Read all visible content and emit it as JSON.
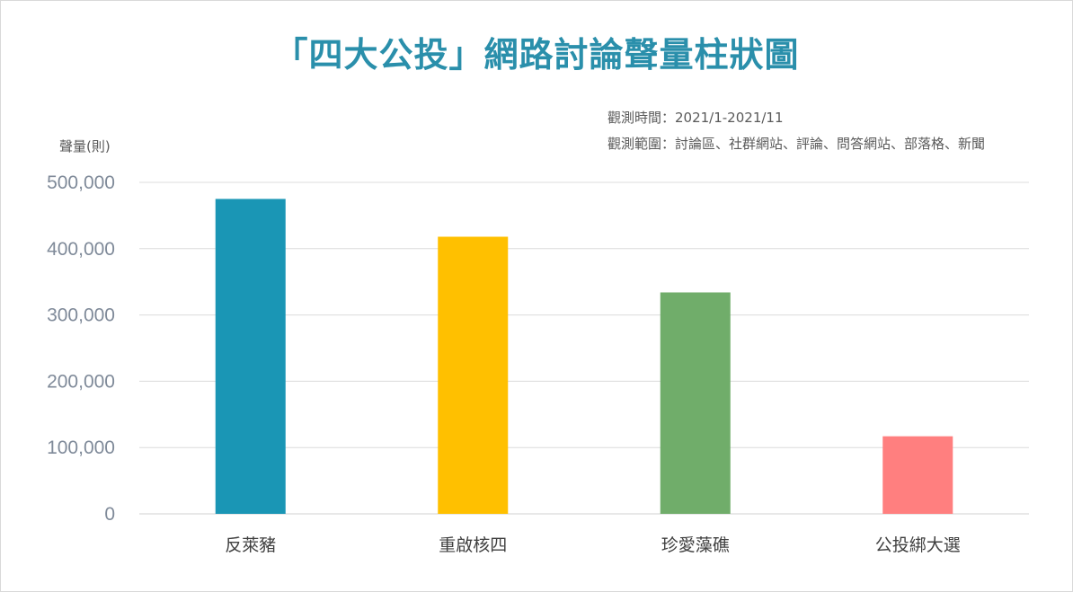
{
  "chart_data": {
    "type": "bar",
    "title": "「四大公投」網路討論聲量柱狀圖",
    "notes": [
      "觀測時間：2021/1-2021/11",
      "觀測範圍：討論區、社群網站、評論、問答網站、部落格、新聞"
    ],
    "ylabel": "聲量(則)",
    "xlabel": "",
    "categories": [
      "反萊豬",
      "重啟核四",
      "珍愛藻礁",
      "公投綁大選"
    ],
    "values": [
      475000,
      418000,
      334000,
      117000
    ],
    "colors": [
      "#1a96b5",
      "#ffc000",
      "#70ad6a",
      "#ff7f7f"
    ],
    "ylim": [
      0,
      500000
    ],
    "yticks": [
      0,
      100000,
      200000,
      300000,
      400000,
      500000
    ],
    "ytick_labels": [
      "0",
      "100,000",
      "200,000",
      "300,000",
      "400,000",
      "500,000"
    ],
    "grid": true,
    "legend": "none"
  }
}
